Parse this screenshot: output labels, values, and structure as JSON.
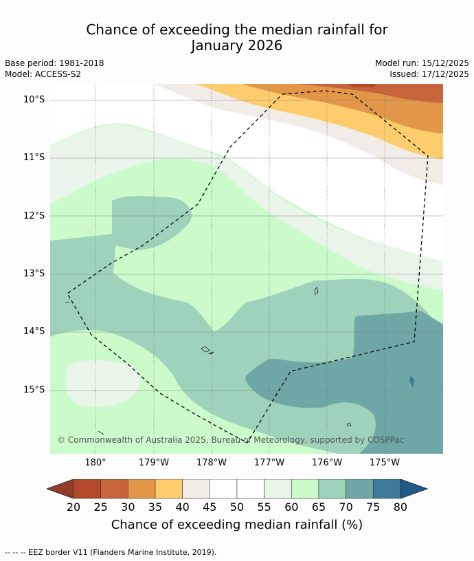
{
  "title_line1": "Chance of exceeding the median rainfall for",
  "title_line2": "January 2026",
  "base_period": "Base period: 1981-2018",
  "model": "Model: ACCESS-S2",
  "model_run": "Model run: 15/12/2025",
  "issued": "Issued: 17/12/2025",
  "y_labels": [
    "10°S",
    "11°S",
    "12°S",
    "13°S",
    "14°S",
    "15°S"
  ],
  "x_labels": [
    "180°",
    "179°W",
    "178°W",
    "177°W",
    "176°W",
    "175°W"
  ],
  "copyright": "© Commonwealth of Australia 2025, Bureau of Meteorology, supported by COSPPac",
  "colorbar": {
    "ticks": [
      "20",
      "25",
      "30",
      "35",
      "40",
      "45",
      "50",
      "55",
      "60",
      "65",
      "70",
      "75",
      "80"
    ],
    "colors": [
      "#b24a2a",
      "#c8643a",
      "#e19648",
      "#fdcc6c",
      "#f1ece6",
      "#ffffff",
      "#ffffff",
      "#eaf5ea",
      "#cbfacb",
      "#9ed2bb",
      "#6fa6a6",
      "#3f7a99"
    ],
    "under_color": "#923b2a",
    "over_color": "#1f5a8a",
    "label": "Chance of exceeding median rainfall (%)"
  },
  "footer": "--  --  -- EEZ border V11 (Flanders Marine Institute, 2019)."
}
